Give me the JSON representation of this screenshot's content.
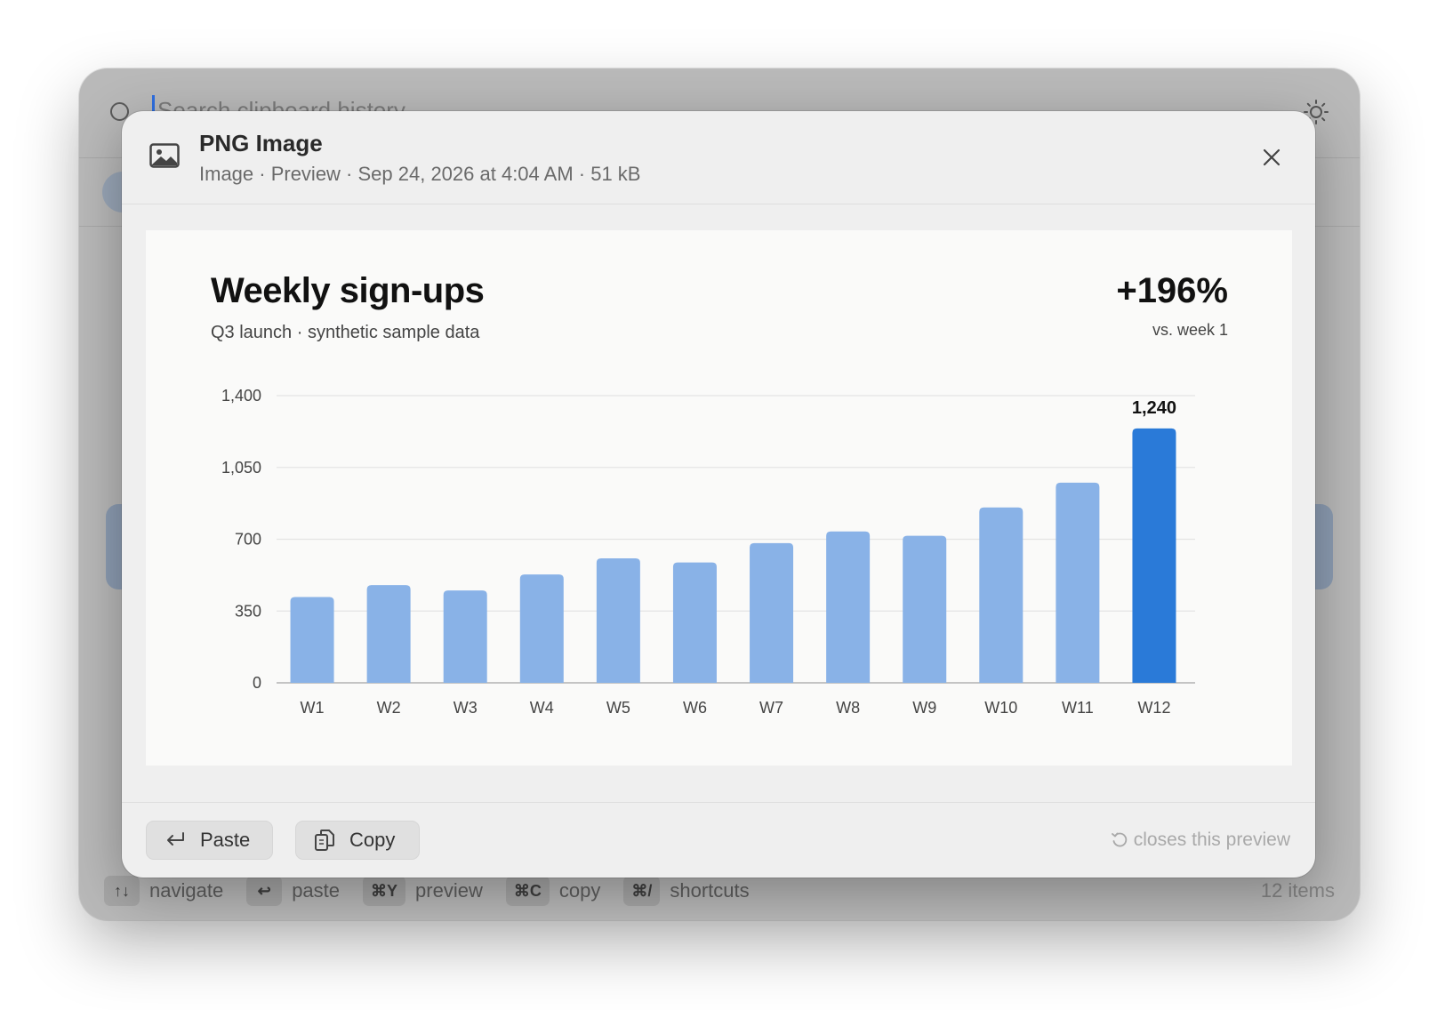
{
  "search": {
    "placeholder": "Search clipboard history"
  },
  "footer": {
    "hints": [
      {
        "key": "↑↓",
        "label": "navigate"
      },
      {
        "key": "↩",
        "label": "paste"
      },
      {
        "key": "⌘Y",
        "label": "preview"
      },
      {
        "key": "⌘C",
        "label": "copy"
      },
      {
        "key": "⌘/",
        "label": "shortcuts"
      }
    ],
    "items_count": "12 items"
  },
  "preview": {
    "title": "PNG Image",
    "meta": "Image · Preview · Sep 24, 2026 at 4:04 AM · 51 kB",
    "paste_label": "Paste",
    "copy_label": "Copy",
    "footer_hint": "closes this preview"
  },
  "chart_data": {
    "type": "bar",
    "title": "Weekly sign-ups",
    "subtitle": "Q3 launch · synthetic sample data",
    "stat": "+196%",
    "stat_label": "vs. week 1",
    "categories": [
      "W1",
      "W2",
      "W3",
      "W4",
      "W5",
      "W6",
      "W7",
      "W8",
      "W9",
      "W10",
      "W11",
      "W12"
    ],
    "values": [
      418,
      476,
      450,
      528,
      607,
      587,
      681,
      738,
      717,
      855,
      976,
      1240
    ],
    "highlight_index": 11,
    "data_labels": {
      "11": "1,240"
    },
    "ylim": [
      0,
      1400
    ],
    "yticks": [
      0,
      350,
      700,
      1050,
      1400
    ],
    "ytick_labels": [
      "0",
      "350",
      "700",
      "1,050",
      "1,400"
    ],
    "grid": true,
    "colors": {
      "bar": "#89b2e7",
      "highlight": "#2a7ad8"
    }
  }
}
